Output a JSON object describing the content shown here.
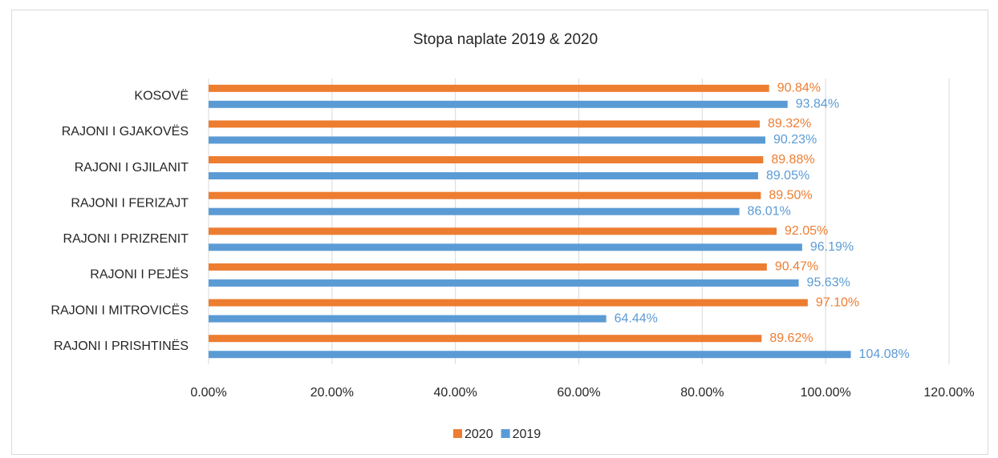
{
  "chart_data": {
    "type": "bar",
    "orientation": "horizontal",
    "title": "Stopa naplate  2019 & 2020",
    "categories": [
      "KOSOVË",
      "RAJONI I GJAKOVËS",
      "RAJONI I GJILANIT",
      "RAJONI I FERIZAJT",
      "RAJONI I PRIZRENIT",
      "RAJONI I PEJËS",
      "RAJONI I MITROVICËS",
      "RAJONI I PRISHTINËS"
    ],
    "series": [
      {
        "name": "2020",
        "color": "#ed7d31",
        "values": [
          90.84,
          89.32,
          89.88,
          89.5,
          92.05,
          90.47,
          97.1,
          89.62
        ],
        "value_labels": [
          "90.84%",
          "89.32%",
          "89.88%",
          "89.50%",
          "92.05%",
          "90.47%",
          "97.10%",
          "89.62%"
        ]
      },
      {
        "name": "2019",
        "color": "#5b9bd5",
        "values": [
          93.84,
          90.23,
          89.05,
          86.01,
          96.19,
          95.63,
          64.44,
          104.08
        ],
        "value_labels": [
          "93.84%",
          "90.23%",
          "89.05%",
          "86.01%",
          "96.19%",
          "95.63%",
          "64.44%",
          "104.08%"
        ]
      }
    ],
    "xlim": [
      0,
      120
    ],
    "xticks": [
      {
        "value": 0,
        "label": "0.00%"
      },
      {
        "value": 20,
        "label": "20.00%"
      },
      {
        "value": 40,
        "label": "40.00%"
      },
      {
        "value": 60,
        "label": "60.00%"
      },
      {
        "value": 80,
        "label": "80.00%"
      },
      {
        "value": 100,
        "label": "100.00%"
      },
      {
        "value": 120,
        "label": "120.00%"
      }
    ],
    "grid": true,
    "legend": "bottom"
  }
}
